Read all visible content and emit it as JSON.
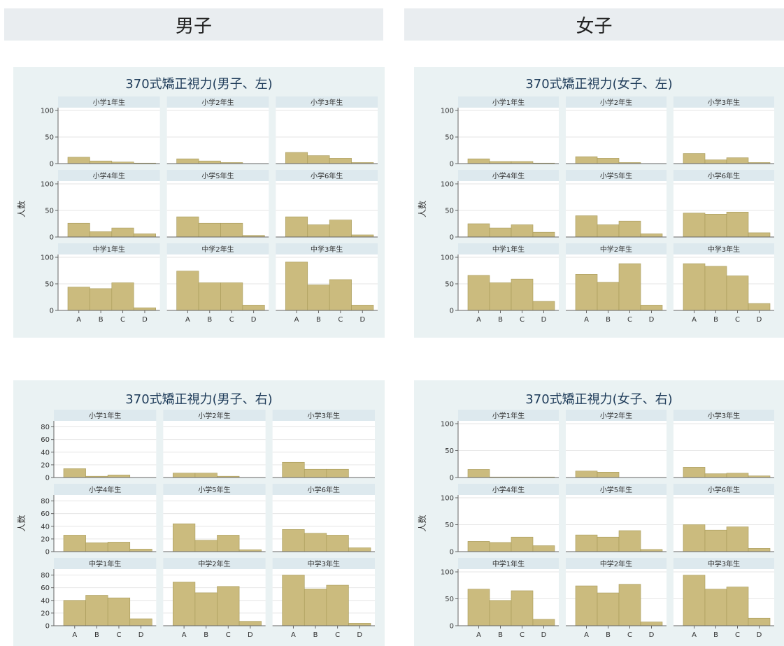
{
  "headers": {
    "left": "男子",
    "right": "女子"
  },
  "colors": {
    "bar": "#cbbb7e",
    "bar_edge": "#a79a58",
    "panel_bg": "#eaf2f3",
    "strip_bg": "#dde9ee",
    "grid": "#e6e6e6",
    "title": "#1f3c5a"
  },
  "chart_data": [
    {
      "type": "bar",
      "title": "370式矯正視力(男子、左)",
      "ylabel": "人数",
      "ylim": [
        0,
        100
      ],
      "yticks": [
        0,
        50,
        100
      ],
      "categories": [
        "A",
        "B",
        "C",
        "D"
      ],
      "facets": [
        {
          "label": "小学1年生",
          "values": [
            12,
            5,
            3,
            1
          ]
        },
        {
          "label": "小学2年生",
          "values": [
            9,
            5,
            2,
            0
          ]
        },
        {
          "label": "小学3年生",
          "values": [
            21,
            15,
            10,
            2
          ]
        },
        {
          "label": "小学4年生",
          "values": [
            26,
            10,
            17,
            6
          ]
        },
        {
          "label": "小学5年生",
          "values": [
            38,
            26,
            26,
            3
          ]
        },
        {
          "label": "小学6年生",
          "values": [
            38,
            23,
            32,
            4
          ]
        },
        {
          "label": "中学1年生",
          "values": [
            44,
            41,
            52,
            5
          ]
        },
        {
          "label": "中学2年生",
          "values": [
            74,
            52,
            52,
            10
          ]
        },
        {
          "label": "中学3年生",
          "values": [
            91,
            48,
            58,
            10
          ]
        }
      ]
    },
    {
      "type": "bar",
      "title": "370式矯正視力(女子、左)",
      "ylabel": "人数",
      "ylim": [
        0,
        100
      ],
      "yticks": [
        0,
        50,
        100
      ],
      "categories": [
        "A",
        "B",
        "C",
        "D"
      ],
      "facets": [
        {
          "label": "小学1年生",
          "values": [
            9,
            4,
            4,
            1
          ]
        },
        {
          "label": "小学2年生",
          "values": [
            13,
            10,
            2,
            0
          ]
        },
        {
          "label": "小学3年生",
          "values": [
            19,
            7,
            11,
            2
          ]
        },
        {
          "label": "小学4年生",
          "values": [
            25,
            17,
            23,
            9
          ]
        },
        {
          "label": "小学5年生",
          "values": [
            40,
            23,
            30,
            6
          ]
        },
        {
          "label": "小学6年生",
          "values": [
            45,
            43,
            47,
            8
          ]
        },
        {
          "label": "中学1年生",
          "values": [
            66,
            52,
            59,
            17
          ]
        },
        {
          "label": "中学2年生",
          "values": [
            68,
            53,
            88,
            10
          ]
        },
        {
          "label": "中学3年生",
          "values": [
            88,
            83,
            65,
            13
          ]
        }
      ]
    },
    {
      "type": "bar",
      "title": "370式矯正視力(男子、右)",
      "ylabel": "人数",
      "ylim": [
        0,
        85
      ],
      "yticks": [
        0,
        20,
        40,
        60,
        80
      ],
      "categories": [
        "A",
        "B",
        "C",
        "D"
      ],
      "facets": [
        {
          "label": "小学1年生",
          "values": [
            14,
            2,
            4,
            0
          ]
        },
        {
          "label": "小学2年生",
          "values": [
            7,
            7,
            2,
            0
          ]
        },
        {
          "label": "小学3年生",
          "values": [
            24,
            13,
            13,
            0
          ]
        },
        {
          "label": "小学4年生",
          "values": [
            26,
            14,
            15,
            4
          ]
        },
        {
          "label": "小学5年生",
          "values": [
            44,
            18,
            26,
            3
          ]
        },
        {
          "label": "小学6年生",
          "values": [
            35,
            29,
            26,
            6
          ]
        },
        {
          "label": "中学1年生",
          "values": [
            40,
            48,
            44,
            11
          ]
        },
        {
          "label": "中学2年生",
          "values": [
            69,
            52,
            62,
            7
          ]
        },
        {
          "label": "中学3年生",
          "values": [
            80,
            58,
            64,
            4
          ]
        }
      ]
    },
    {
      "type": "bar",
      "title": "370式矯正視力(女子、右)",
      "ylabel": "人数",
      "ylim": [
        0,
        100
      ],
      "yticks": [
        0,
        50,
        100
      ],
      "categories": [
        "A",
        "B",
        "C",
        "D"
      ],
      "facets": [
        {
          "label": "小学1年生",
          "values": [
            15,
            1,
            1,
            1
          ]
        },
        {
          "label": "小学2年生",
          "values": [
            12,
            10,
            0,
            0
          ]
        },
        {
          "label": "小学3年生",
          "values": [
            19,
            7,
            8,
            3
          ]
        },
        {
          "label": "小学4年生",
          "values": [
            19,
            17,
            27,
            11
          ]
        },
        {
          "label": "小学5年生",
          "values": [
            31,
            27,
            39,
            4
          ]
        },
        {
          "label": "小学6年生",
          "values": [
            50,
            40,
            46,
            6
          ]
        },
        {
          "label": "中学1年生",
          "values": [
            68,
            47,
            65,
            12
          ]
        },
        {
          "label": "中学2年生",
          "values": [
            74,
            61,
            77,
            7
          ]
        },
        {
          "label": "中学3年生",
          "values": [
            94,
            68,
            72,
            14
          ]
        }
      ]
    }
  ]
}
